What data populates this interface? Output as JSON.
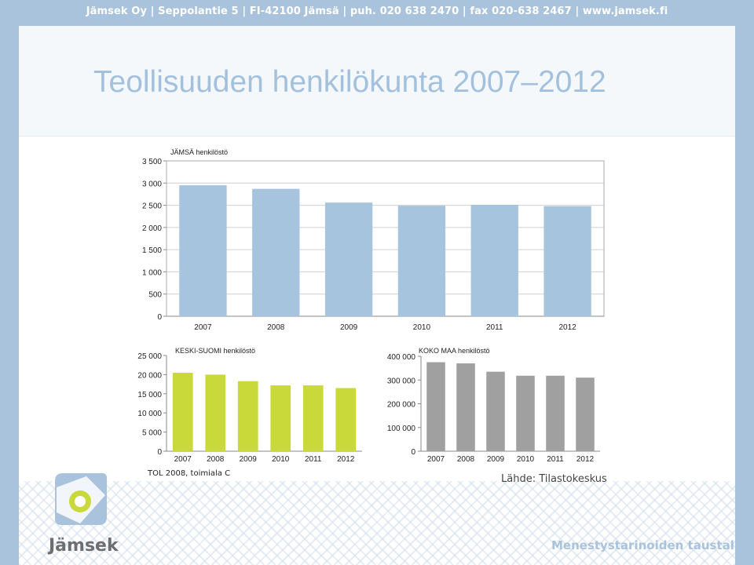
{
  "header": {
    "contact_text": "Jämsek Oy  |  Seppolantie 5  |  FI-42100 Jämsä  |  puh. 020 638 2470  |  fax 020-638 2467  |  www.jamsek.fi"
  },
  "slide": {
    "title": "Teollisuuden henkilökunta 2007–2012",
    "note": "TOL 2008, toimiala C",
    "source": "Lähde: Tilastokeskus",
    "tagline": "Menestystarinoiden taustalla.",
    "logo_text": "Jämsek"
  },
  "colors": {
    "jamsa": "#a6c4de",
    "keski_suomi": "#c9d93a",
    "koko_maa": "#a0a0a0",
    "title": "#a3c1dd",
    "brand": "#a9c3dc"
  },
  "chart_data": [
    {
      "type": "bar",
      "title": "JÄMSÄ henkilöstö",
      "categories": [
        "2007",
        "2008",
        "2009",
        "2010",
        "2011",
        "2012"
      ],
      "values": [
        2950,
        2870,
        2560,
        2490,
        2510,
        2480
      ],
      "ylim": [
        0,
        3500
      ],
      "yticks": [
        "0",
        "500",
        "1 000",
        "1 500",
        "2 000",
        "2 500",
        "3 000",
        "3 500"
      ],
      "grid": true
    },
    {
      "type": "bar",
      "title": "KESKI-SUOMI henkilöstö",
      "categories": [
        "2007",
        "2008",
        "2009",
        "2010",
        "2011",
        "2012"
      ],
      "values": [
        20500,
        20000,
        18300,
        17200,
        17200,
        16500
      ],
      "ylim": [
        0,
        25000
      ],
      "yticks": [
        "0",
        "5 000",
        "10 000",
        "15 000",
        "20 000",
        "25 000"
      ],
      "grid": false
    },
    {
      "type": "bar",
      "title": "KOKO MAA henkilöstö",
      "categories": [
        "2007",
        "2008",
        "2009",
        "2010",
        "2011",
        "2012"
      ],
      "values": [
        375000,
        370000,
        335000,
        318000,
        318000,
        310000
      ],
      "ylim": [
        0,
        400000
      ],
      "yticks": [
        "0",
        "100 000",
        "200 000",
        "300 000",
        "400 000"
      ],
      "grid": false
    }
  ]
}
